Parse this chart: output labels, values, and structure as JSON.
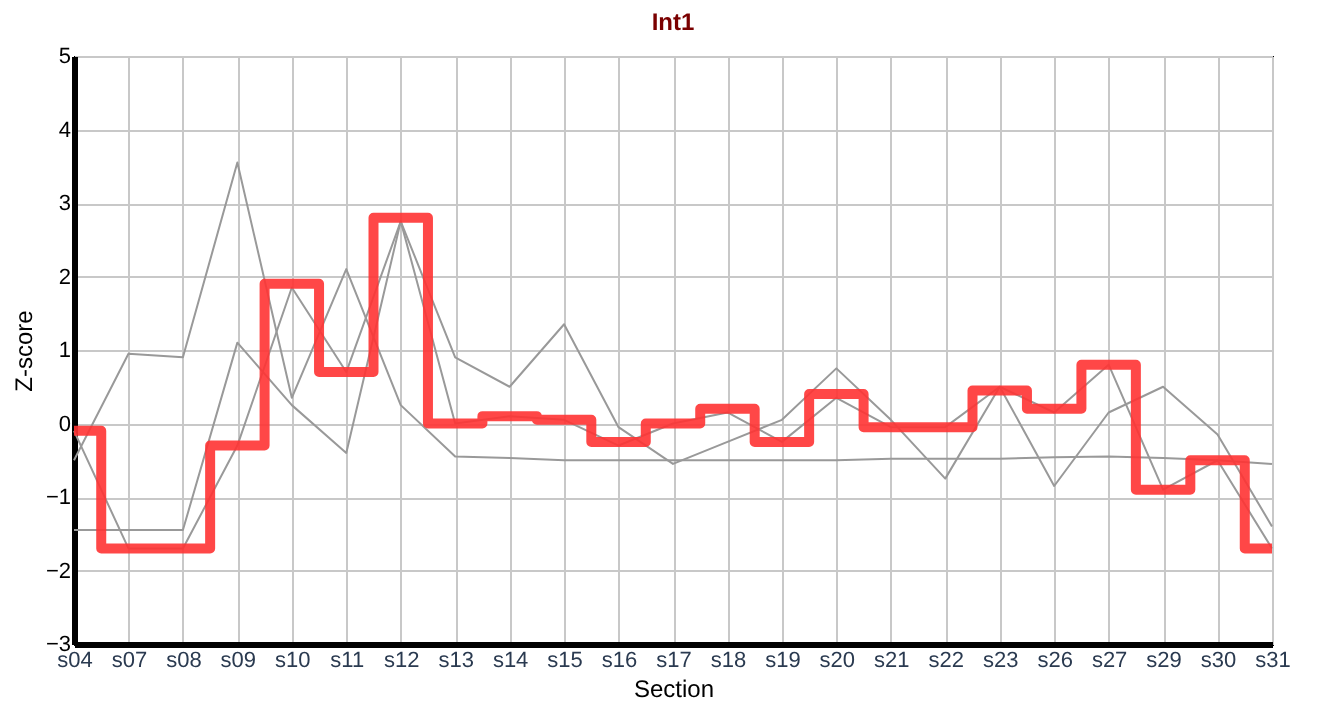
{
  "chart_data": {
    "type": "line",
    "title": "Int1",
    "xlabel": "Section",
    "ylabel": "Z-score",
    "categories": [
      "s04",
      "s07",
      "s08",
      "s09",
      "s10",
      "s11",
      "s12",
      "s13",
      "s14",
      "s15",
      "s16",
      "s17",
      "s18",
      "s19",
      "s20",
      "s21",
      "s22",
      "s23",
      "s26",
      "s27",
      "s29",
      "s30",
      "s31"
    ],
    "series": [
      {
        "color": "#999999",
        "values": [
          -0.5,
          0.95,
          0.9,
          3.55,
          0.35,
          2.1,
          0.25,
          -0.45,
          -0.47,
          -0.5,
          -0.5,
          -0.5,
          -0.5,
          -0.5,
          -0.5,
          -0.48,
          -0.48,
          -0.48,
          -0.46,
          -0.45,
          -0.47,
          -0.5,
          -0.55
        ]
      },
      {
        "color": "#999999",
        "values": [
          -1.45,
          -1.45,
          -1.45,
          1.1,
          0.25,
          -0.4,
          2.75,
          0.9,
          0.5,
          1.35,
          -0.05,
          -0.55,
          -0.25,
          0.05,
          0.75,
          0.05,
          -0.75,
          0.5,
          -0.85,
          0.15,
          0.5,
          -0.15,
          -1.4
        ]
      },
      {
        "color": "#999999",
        "values": [
          -0.1,
          -1.7,
          -1.7,
          -0.3,
          1.85,
          0.7,
          2.75,
          0,
          0.1,
          0.05,
          -0.3,
          0,
          0.15,
          -0.25,
          0.35,
          -0.05,
          -0.05,
          0.5,
          0.15,
          0.8,
          -0.9,
          -0.5,
          -1.7
        ]
      },
      {
        "type": "step",
        "color": "#ff3333",
        "values": [
          -0.1,
          -1.7,
          -1.7,
          -0.3,
          1.9,
          0.7,
          2.8,
          0,
          0.1,
          0.05,
          -0.25,
          0,
          0.2,
          -0.25,
          0.4,
          -0.05,
          -0.05,
          0.45,
          0.2,
          0.8,
          -0.9,
          -0.5,
          -1.7
        ]
      }
    ],
    "ylim": [
      -3,
      5
    ],
    "yticks": [
      -3,
      -2,
      -1,
      0,
      1,
      2,
      3,
      4,
      5
    ],
    "grid": true
  }
}
